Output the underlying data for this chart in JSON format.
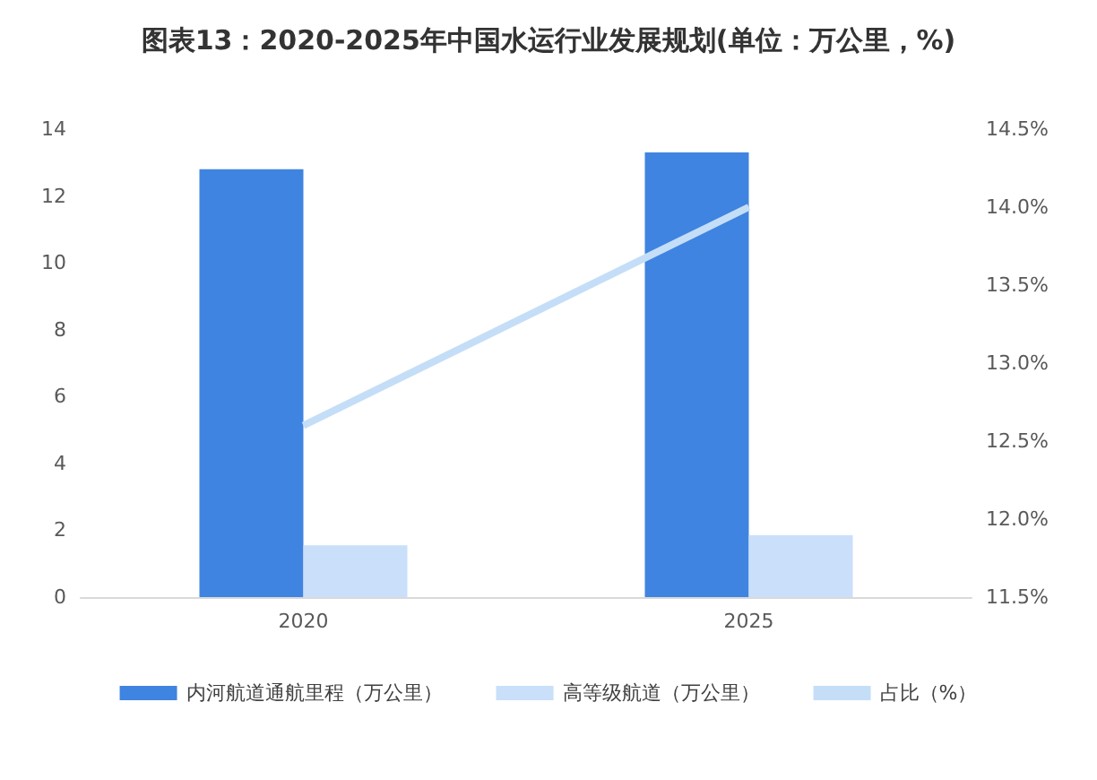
{
  "chart_data": {
    "type": "bar",
    "title": "图表13：2020-2025年中国水运行业发展规划(单位：万公里，%)",
    "categories": [
      "2020",
      "2025"
    ],
    "series": [
      {
        "name": "内河航道通航里程（万公里）",
        "color": "#3f84e0",
        "values": [
          12.8,
          13.3
        ]
      },
      {
        "name": "高等级航道（万公里）",
        "color": "#c9dffa",
        "values": [
          1.55,
          1.85
        ]
      },
      {
        "name": "占比（%）",
        "type": "line",
        "axis": "y2",
        "color": "#c5def7",
        "values": [
          12.6,
          14.0
        ]
      }
    ],
    "ylim": [
      0,
      14
    ],
    "yticks": [
      0,
      2,
      4,
      6,
      8,
      10,
      12,
      14
    ],
    "y2lim": [
      11.5,
      14.5
    ],
    "y2ticks": [
      {
        "value": 11.5,
        "label": "11.5%"
      },
      {
        "value": 12,
        "label": "12.0%"
      },
      {
        "value": 12.5,
        "label": "12.5%"
      },
      {
        "value": 13,
        "label": "13.0%"
      },
      {
        "value": 13.5,
        "label": "13.5%"
      },
      {
        "value": 14,
        "label": "14.0%"
      },
      {
        "value": 14.5,
        "label": "14.5%"
      }
    ],
    "grid": false,
    "legend": "bottom",
    "marker": "none"
  }
}
